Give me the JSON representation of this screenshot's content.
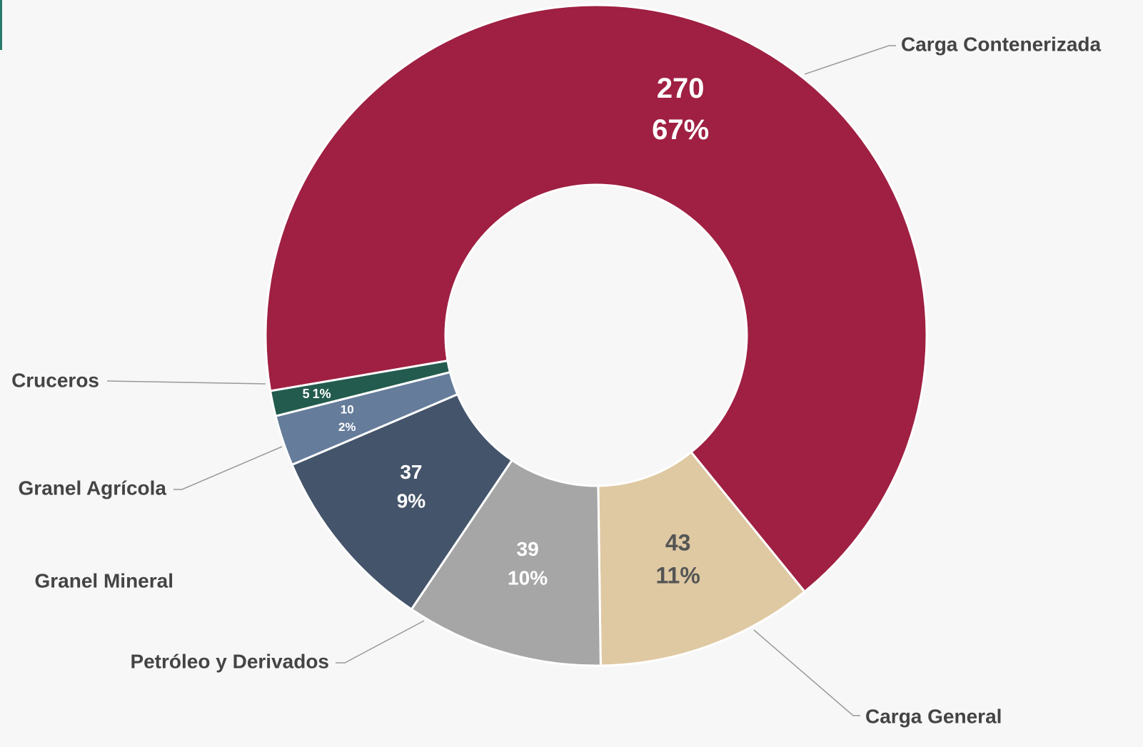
{
  "chart_data": {
    "type": "donut",
    "categories": [
      "Carga Contenerizada",
      "Carga General",
      "Petróleo y Derivados",
      "Granel Mineral",
      "Granel Agrícola",
      "Cruceros"
    ],
    "values": [
      270,
      43,
      39,
      37,
      10,
      5
    ],
    "percent_labels": [
      "67%",
      "11%",
      "10%",
      "9%",
      "2%",
      "1%"
    ],
    "colors": [
      "#9f2042",
      "#dfc9a3",
      "#a6a6a6",
      "#44546a",
      "#657c9b",
      "#235b4e"
    ]
  }
}
